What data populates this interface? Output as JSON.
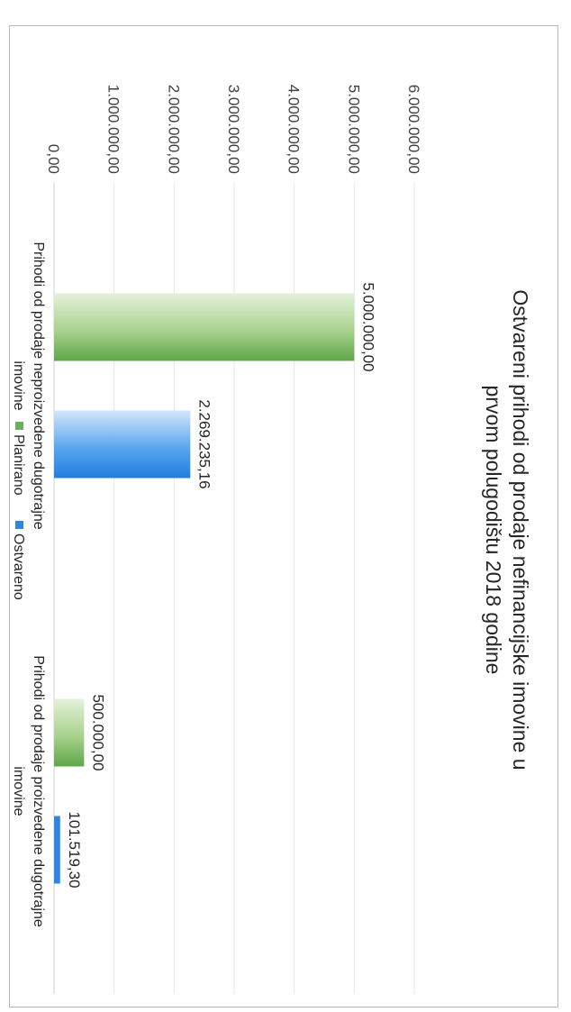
{
  "chart_data": {
    "type": "bar",
    "orientation": "vertical",
    "title": "Ostvareni prihodi od prodaje nefinancijske imovine u prvom polugodištu 2018 godine",
    "title_lines": [
      "Ostvareni prihodi od prodaje nefinancijske imovine u",
      "prvom polugodištu 2018 godine"
    ],
    "categories": [
      "Prihodi od prodaje neproizvedene dugotrajne imovine",
      "Prihodi od prodaje proizvedene dugotrajne imovine"
    ],
    "category_lines": [
      [
        "Prihodi od prodaje neproizvedene dugotrajne",
        "imovine"
      ],
      [
        "Prihodi od prodaje proizvedene dugotrajne",
        "imovine"
      ]
    ],
    "series": [
      {
        "name": "Planirano",
        "values": [
          5000000.0,
          500000.0
        ],
        "labels": [
          "5.000.000,00",
          "500.000,00"
        ],
        "color": "#6aaf5a"
      },
      {
        "name": "Ostvareno",
        "values": [
          2269235.16,
          101519.3
        ],
        "labels": [
          "2.269.235,16",
          "101.519,30"
        ],
        "color": "#2f86e0"
      }
    ],
    "ylim": [
      0,
      6000000
    ],
    "y_ticks": [
      {
        "value": 0,
        "label": "0,00"
      },
      {
        "value": 1000000,
        "label": "1.000.000,00"
      },
      {
        "value": 2000000,
        "label": "2.000.000,00"
      },
      {
        "value": 3000000,
        "label": "3.000.000,00"
      },
      {
        "value": 4000000,
        "label": "4.000.000,00"
      },
      {
        "value": 5000000,
        "label": "5.000.000,00"
      },
      {
        "value": 6000000,
        "label": "6.000.000,00"
      }
    ],
    "grid": true,
    "legend_position": "bottom",
    "page_rotation": "rotated 90° clockwise (landscape chart scanned on portrait page)"
  }
}
